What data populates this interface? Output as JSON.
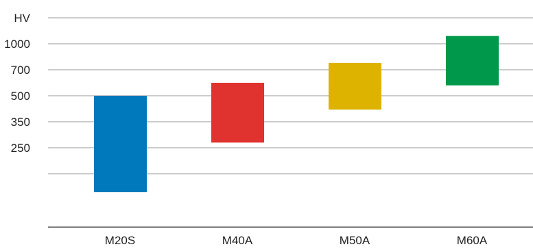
{
  "chart_data": {
    "type": "bar",
    "subtype": "floating-range",
    "ylabel": "HV",
    "categories": [
      "M20S",
      "M40A",
      "M50A",
      "M60A"
    ],
    "y_tick_labels": [
      "1000",
      "700",
      "500",
      "350",
      "250"
    ],
    "grid": true,
    "series": [
      {
        "ranges": [
          {
            "category": "M20S",
            "min": 150,
            "max": 500,
            "color": "#0079BC"
          },
          {
            "category": "M40A",
            "min": 270,
            "max": 600,
            "color": "#E0322E"
          },
          {
            "category": "M50A",
            "min": 420,
            "max": 780,
            "color": "#DDB300"
          },
          {
            "category": "M60A",
            "min": 580,
            "max": 1060,
            "color": "#00984A"
          }
        ]
      }
    ]
  }
}
